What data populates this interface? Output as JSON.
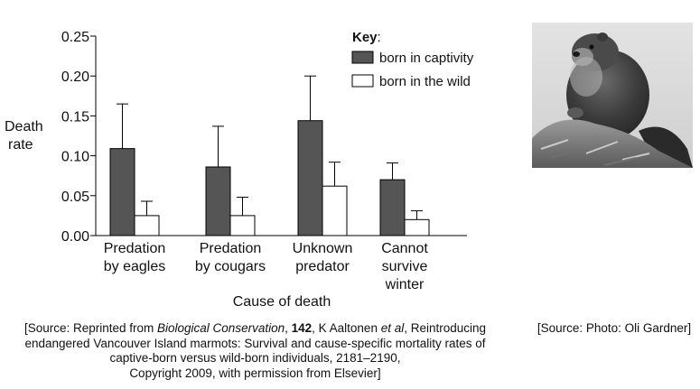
{
  "chart_data": {
    "type": "bar",
    "xlabel": "Cause of death",
    "ylabel_lines": [
      "Death",
      "rate"
    ],
    "ylim": [
      0,
      0.25
    ],
    "yticks": [
      "0.00",
      "0.05",
      "0.10",
      "0.15",
      "0.20",
      "0.25"
    ],
    "categories": [
      [
        "Predation",
        "by eagles"
      ],
      [
        "Predation",
        "by cougars"
      ],
      [
        "Unknown",
        "predator"
      ],
      [
        "Cannot",
        "survive",
        "winter"
      ]
    ],
    "series": [
      {
        "name": "born in captivity",
        "color": "#555555",
        "values": [
          0.109,
          0.086,
          0.144,
          0.07
        ],
        "error_upper": [
          0.165,
          0.137,
          0.2,
          0.091
        ]
      },
      {
        "name": "born in the wild",
        "color": "#ffffff",
        "values": [
          0.025,
          0.025,
          0.062,
          0.02
        ],
        "error_upper": [
          0.043,
          0.048,
          0.092,
          0.031
        ]
      }
    ],
    "legend": {
      "title": "Key",
      "title_suffix": ":",
      "placement": "top-right"
    }
  },
  "photo": {
    "subject": "marmot-photo"
  },
  "captions": {
    "left": {
      "line1_a": "[Source: Reprinted from ",
      "line1_b": "Biological Conservation",
      "line1_c": ", ",
      "line1_d": "142",
      "line1_e": ", K Aaltonen ",
      "line1_f": "et al",
      "line1_g": ", Reintroducing",
      "line2": "endangered Vancouver Island marmots: Survival and cause-specific mortality rates of",
      "line3": "captive-born versus wild-born individuals, 2181–2190,",
      "line4": "Copyright 2009, with permission from Elsevier]"
    },
    "right": "[Source: Photo: Oli Gardner]"
  }
}
